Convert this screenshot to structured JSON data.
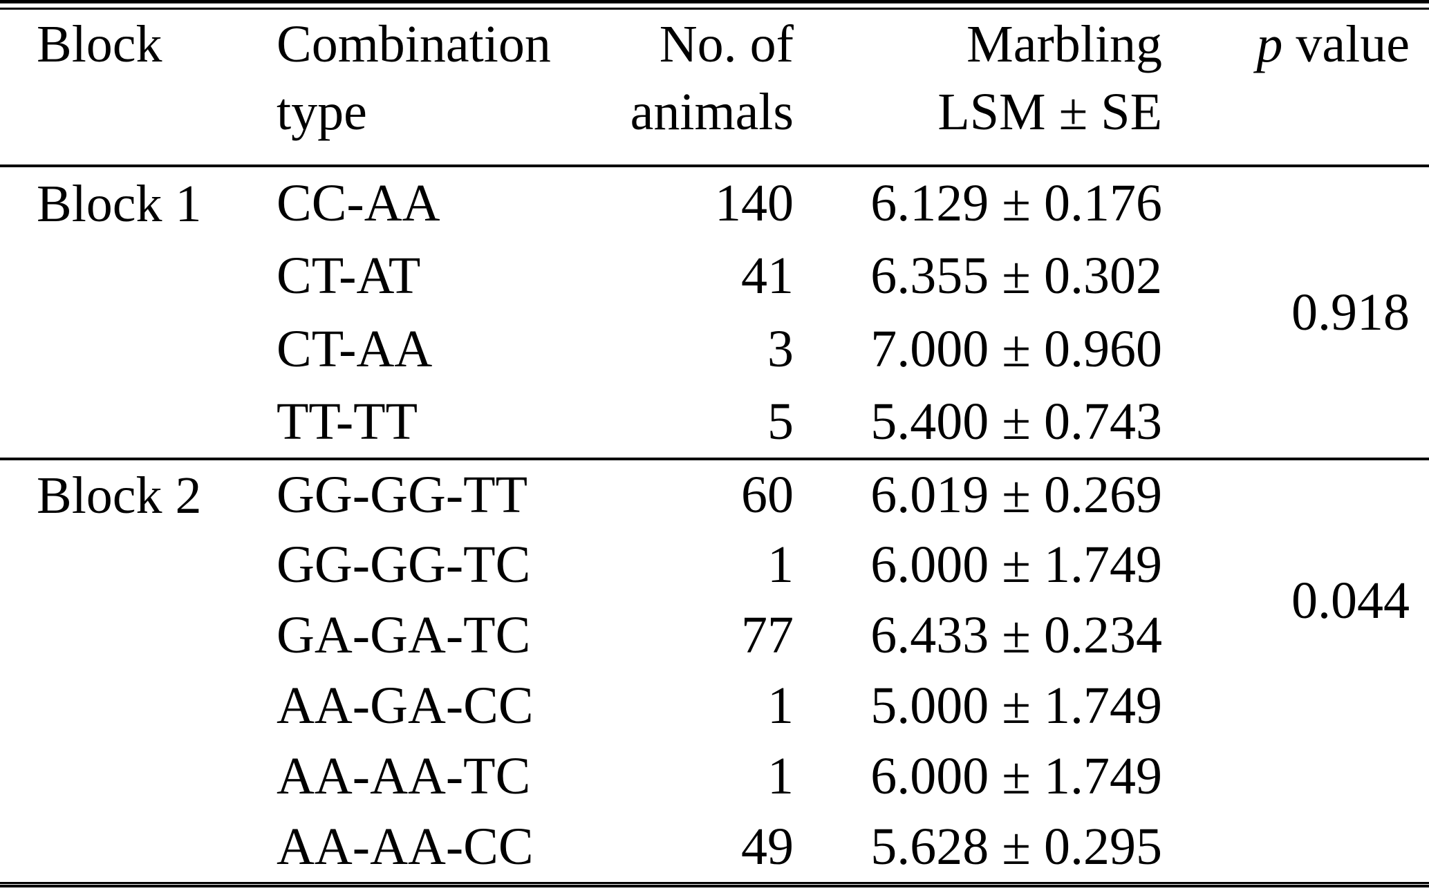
{
  "page": {
    "background_color": "#ffffff",
    "text_color": "#000000"
  },
  "table": {
    "headers": {
      "block": "Block",
      "combination_line1": "Combination",
      "combination_line2": "type",
      "animals_line1": "No. of",
      "animals_line2": "animals",
      "marbling_line1": "Marbling",
      "marbling_line2": "LSM ± SE",
      "p_symbol": "p",
      "p_rest": "value"
    },
    "blocks": [
      {
        "label": "Block 1",
        "p_value": "0.918",
        "rows": [
          {
            "combination_type": "CC-AA",
            "no_of_animals": "140",
            "marbling_lsm_se": "6.129 ± 0.176"
          },
          {
            "combination_type": "CT-AT",
            "no_of_animals": "41",
            "marbling_lsm_se": "6.355 ± 0.302"
          },
          {
            "combination_type": "CT-AA",
            "no_of_animals": "3",
            "marbling_lsm_se": "7.000 ± 0.960"
          },
          {
            "combination_type": "TT-TT",
            "no_of_animals": "5",
            "marbling_lsm_se": "5.400 ± 0.743"
          }
        ]
      },
      {
        "label": "Block 2",
        "p_value": "0.044",
        "rows": [
          {
            "combination_type": "GG-GG-TT",
            "no_of_animals": "60",
            "marbling_lsm_se": "6.019 ± 0.269"
          },
          {
            "combination_type": "GG-GG-TC",
            "no_of_animals": "1",
            "marbling_lsm_se": "6.000 ± 1.749"
          },
          {
            "combination_type": "GA-GA-TC",
            "no_of_animals": "77",
            "marbling_lsm_se": "6.433 ± 0.234"
          },
          {
            "combination_type": "AA-GA-CC",
            "no_of_animals": "1",
            "marbling_lsm_se": "5.000 ± 1.749"
          },
          {
            "combination_type": "AA-AA-TC",
            "no_of_animals": "1",
            "marbling_lsm_se": "6.000 ± 1.749"
          },
          {
            "combination_type": "AA-AA-CC",
            "no_of_animals": "49",
            "marbling_lsm_se": "5.628 ± 0.295"
          }
        ]
      }
    ]
  },
  "chart_data": {
    "type": "table",
    "columns": [
      "Block",
      "Combination type",
      "No. of animals",
      "Marbling LSM ± SE",
      "p value"
    ],
    "rows": [
      [
        "Block 1",
        "CC-AA",
        140,
        "6.129 ± 0.176",
        0.918
      ],
      [
        "Block 1",
        "CT-AT",
        41,
        "6.355 ± 0.302",
        0.918
      ],
      [
        "Block 1",
        "CT-AA",
        3,
        "7.000 ± 0.960",
        0.918
      ],
      [
        "Block 1",
        "TT-TT",
        5,
        "5.400 ± 0.743",
        0.918
      ],
      [
        "Block 2",
        "GG-GG-TT",
        60,
        "6.019 ± 0.269",
        0.044
      ],
      [
        "Block 2",
        "GG-GG-TC",
        1,
        "6.000 ± 1.749",
        0.044
      ],
      [
        "Block 2",
        "GA-GA-TC",
        77,
        "6.433 ± 0.234",
        0.044
      ],
      [
        "Block 2",
        "AA-GA-CC",
        1,
        "5.000 ± 1.749",
        0.044
      ],
      [
        "Block 2",
        "AA-AA-TC",
        1,
        "6.000 ± 1.749",
        0.044
      ],
      [
        "Block 2",
        "AA-AA-CC",
        49,
        "5.628 ± 0.295",
        0.044
      ]
    ]
  }
}
